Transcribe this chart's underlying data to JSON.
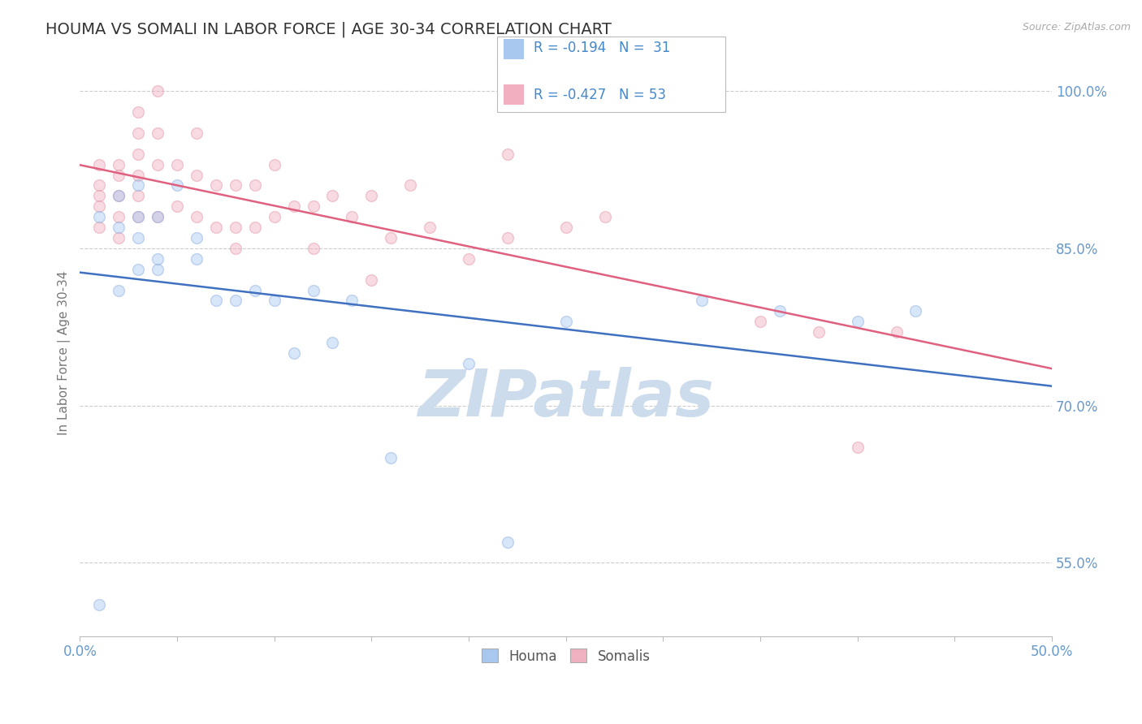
{
  "title": "HOUMA VS SOMALI IN LABOR FORCE | AGE 30-34 CORRELATION CHART",
  "source": "Source: ZipAtlas.com",
  "ylabel": "In Labor Force | Age 30-34",
  "xlim": [
    0.0,
    0.5
  ],
  "ylim": [
    0.48,
    1.02
  ],
  "xticks": [
    0.0,
    0.05,
    0.1,
    0.15,
    0.2,
    0.25,
    0.3,
    0.35,
    0.4,
    0.45,
    0.5
  ],
  "xticklabels": [
    "0.0%",
    "",
    "",
    "",
    "",
    "",
    "",
    "",
    "",
    "",
    "50.0%"
  ],
  "ytick_positions": [
    0.55,
    0.7,
    0.85,
    1.0
  ],
  "ytick_labels": [
    "55.0%",
    "70.0%",
    "85.0%",
    "100.0%"
  ],
  "houma_color": "#a8c8f0",
  "somali_color": "#f0b0c0",
  "houma_edge_color": "#88aadd",
  "somali_edge_color": "#e090a0",
  "houma_line_color": "#4070c0",
  "somali_line_color": "#e06080",
  "legend_text_color": "#4488cc",
  "legend_R_houma": "R = -0.194",
  "legend_N_houma": "N =  31",
  "legend_R_somali": "R = -0.427",
  "legend_N_somali": "N = 53",
  "legend_label_houma": "Houma",
  "legend_label_somali": "Somalis",
  "houma_x": [
    0.01,
    0.02,
    0.02,
    0.03,
    0.03,
    0.03,
    0.04,
    0.04,
    0.05,
    0.06,
    0.07,
    0.08,
    0.09,
    0.1,
    0.11,
    0.12,
    0.13,
    0.14,
    0.16,
    0.2,
    0.22,
    0.25,
    0.32,
    0.36,
    0.4,
    0.43,
    0.02,
    0.03,
    0.04,
    0.06,
    0.01
  ],
  "houma_y": [
    0.88,
    0.9,
    0.87,
    0.91,
    0.88,
    0.86,
    0.88,
    0.84,
    0.91,
    0.84,
    0.8,
    0.8,
    0.81,
    0.8,
    0.75,
    0.81,
    0.76,
    0.8,
    0.65,
    0.74,
    0.57,
    0.78,
    0.8,
    0.79,
    0.78,
    0.79,
    0.81,
    0.83,
    0.83,
    0.86,
    0.51
  ],
  "somali_x": [
    0.01,
    0.01,
    0.01,
    0.01,
    0.01,
    0.02,
    0.02,
    0.02,
    0.02,
    0.02,
    0.03,
    0.03,
    0.03,
    0.03,
    0.03,
    0.04,
    0.04,
    0.04,
    0.05,
    0.05,
    0.06,
    0.06,
    0.06,
    0.07,
    0.07,
    0.08,
    0.08,
    0.09,
    0.09,
    0.1,
    0.1,
    0.11,
    0.12,
    0.12,
    0.13,
    0.14,
    0.15,
    0.16,
    0.17,
    0.18,
    0.2,
    0.22,
    0.25,
    0.15,
    0.08,
    0.04,
    0.03,
    0.22,
    0.27,
    0.35,
    0.38,
    0.42,
    0.4
  ],
  "somali_y": [
    0.93,
    0.91,
    0.9,
    0.89,
    0.87,
    0.93,
    0.92,
    0.9,
    0.88,
    0.86,
    0.96,
    0.94,
    0.92,
    0.9,
    0.88,
    0.96,
    0.93,
    0.88,
    0.93,
    0.89,
    0.96,
    0.92,
    0.88,
    0.91,
    0.87,
    0.91,
    0.87,
    0.91,
    0.87,
    0.93,
    0.88,
    0.89,
    0.89,
    0.85,
    0.9,
    0.88,
    0.9,
    0.86,
    0.91,
    0.87,
    0.84,
    0.86,
    0.87,
    0.82,
    0.85,
    1.0,
    0.98,
    0.94,
    0.88,
    0.78,
    0.77,
    0.77,
    0.66
  ],
  "background_color": "#ffffff",
  "watermark_text": "ZIPatlas",
  "watermark_color": "#ccdcec",
  "grid_color": "#cccccc",
  "title_color": "#333333",
  "tick_label_color": "#6699cc",
  "title_fontsize": 14,
  "marker_size": 100,
  "marker_alpha": 0.45,
  "line_width": 1.8
}
